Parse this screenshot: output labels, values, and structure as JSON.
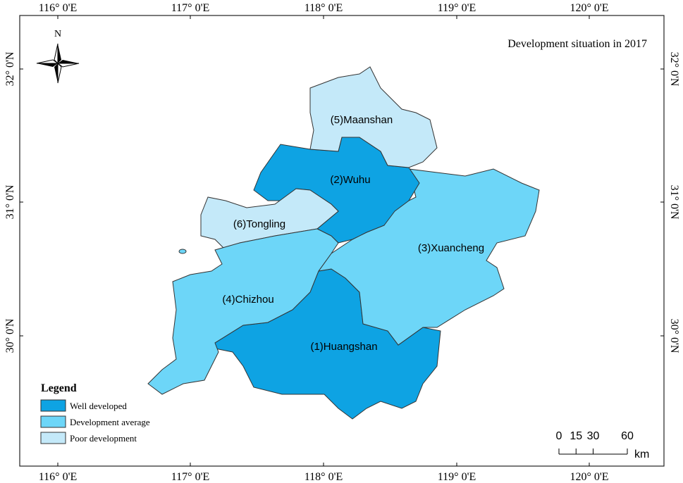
{
  "map": {
    "title": "Development situation in 2017",
    "north_label": "N",
    "longitude_labels": [
      "116° 0'E",
      "117° 0'E",
      "118° 0'E",
      "119° 0'E",
      "120° 0'E"
    ],
    "latitude_labels": [
      "32° 0'N",
      "31° 0'N",
      "30° 0'N"
    ],
    "regions": [
      {
        "label": "(1)Huangshan",
        "category": 0
      },
      {
        "label": "(3)Xuancheng",
        "category": 1
      },
      {
        "label": "(2)Wuhu",
        "category": 0
      },
      {
        "label": "(5)Maanshan",
        "category": 2
      },
      {
        "label": "(6)Tongling",
        "category": 2
      },
      {
        "label": "(4)Chizhou",
        "category": 1
      }
    ],
    "legend": {
      "title": "Legend",
      "items": [
        {
          "label": "Well developed",
          "color": "#0ea3e3"
        },
        {
          "label": "Development average",
          "color": "#6dd6f8"
        },
        {
          "label": "Poor development",
          "color": "#c4e9f9"
        }
      ]
    },
    "scale": {
      "ticks": [
        0,
        15,
        30,
        60
      ],
      "unit": "km"
    }
  }
}
